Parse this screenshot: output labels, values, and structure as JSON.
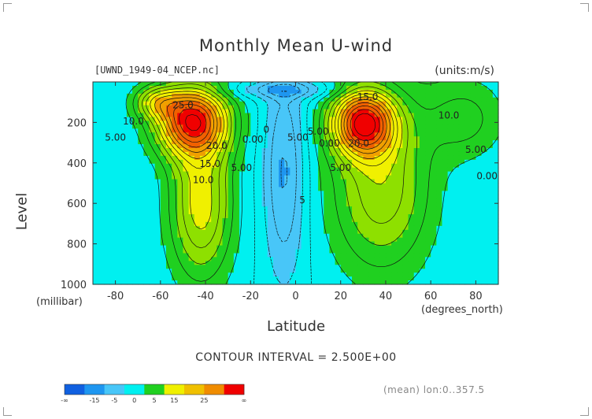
{
  "page": {
    "title": "Monthly Mean U-wind",
    "dataset_label": "[UWND_1949-04_NCEP.nc]",
    "units_label": "(units:m/s)",
    "xlabel": "Latitude",
    "ylabel": "Level",
    "y_units": "(millibar)",
    "x_units": "(degrees_north)",
    "contour_interval": "CONTOUR INTERVAL = 2.500E+00",
    "footnote": "(mean) lon:0..357.5"
  },
  "chart_data": {
    "type": "heatmap",
    "title": "Monthly Mean U-wind",
    "xlabel": "Latitude",
    "ylabel": "Level",
    "x_units": "degrees_north",
    "y_units": "millibar",
    "xlim": [
      -90,
      90
    ],
    "ylim": [
      1000,
      0
    ],
    "x_ticks": [
      -80,
      -60,
      -40,
      -20,
      0,
      20,
      40,
      60,
      80
    ],
    "y_ticks": [
      200,
      400,
      600,
      800,
      1000
    ],
    "grid": false,
    "contour_interval": 2.5,
    "contour_labels": [
      {
        "text": "25.0",
        "lat": -50,
        "level": 130
      },
      {
        "text": "20.0",
        "lat": -35,
        "level": 330
      },
      {
        "text": "15.0",
        "lat": -38,
        "level": 420
      },
      {
        "text": "10.0",
        "lat": -41,
        "level": 500
      },
      {
        "text": "10.0",
        "lat": -72,
        "level": 210
      },
      {
        "text": "5.00",
        "lat": -80,
        "level": 290
      },
      {
        "text": "5.00",
        "lat": -24,
        "level": 440
      },
      {
        "text": "0.00",
        "lat": -19,
        "level": 300
      },
      {
        "text": "0",
        "lat": -13,
        "level": 250
      },
      {
        "text": "5.00",
        "lat": 1,
        "level": 290
      },
      {
        "text": "5.00",
        "lat": 10,
        "level": 260
      },
      {
        "text": "0.00",
        "lat": 15,
        "level": 320
      },
      {
        "text": "5.00",
        "lat": 20,
        "level": 440
      },
      {
        "text": "15.0",
        "lat": 32,
        "level": 90
      },
      {
        "text": "20.0",
        "lat": 28,
        "level": 320
      },
      {
        "text": "10.0",
        "lat": 68,
        "level": 180
      },
      {
        "text": "5.00",
        "lat": 80,
        "level": 350
      },
      {
        "text": "0.00",
        "lat": 85,
        "level": 480
      },
      {
        "text": "5",
        "lat": 3,
        "level": 600
      }
    ],
    "colorbar": {
      "colors": [
        "#1060e0",
        "#1e96f0",
        "#48c6f8",
        "#00f0f0",
        "#20d020",
        "#f0f000",
        "#f0c000",
        "#f08c00",
        "#f00000"
      ],
      "labels": [
        "-∞",
        "-15",
        "-5",
        "0",
        "5",
        "15",
        "25",
        "∞"
      ]
    },
    "fields": {
      "description_note": "",
      "southern_jet": {
        "lat": -45,
        "level": 200,
        "max_value": 27
      },
      "northern_jet": {
        "lat": 30,
        "level": 200,
        "max_value": 27
      },
      "min_value": -8
    }
  }
}
